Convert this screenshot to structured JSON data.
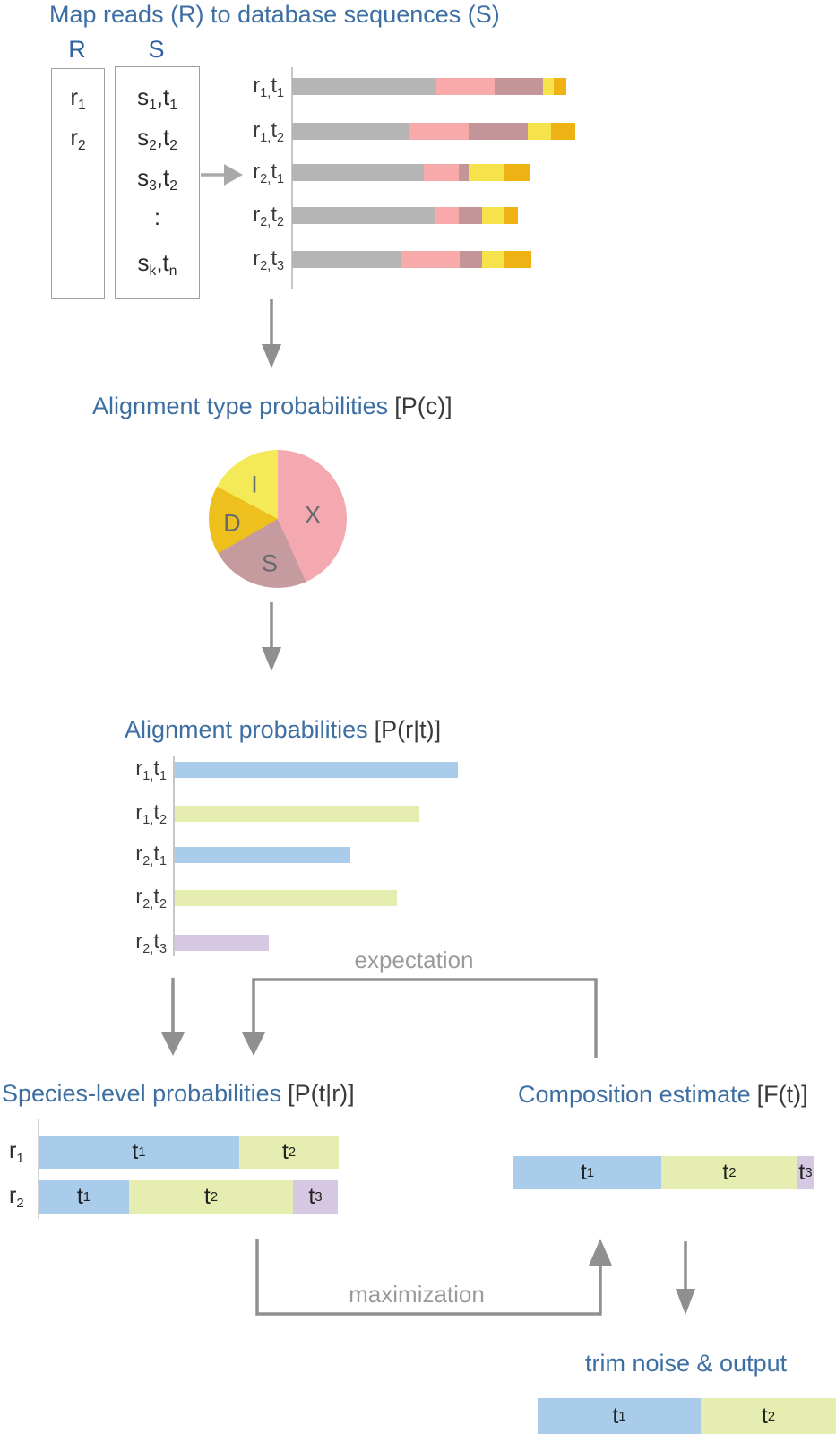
{
  "titles": {
    "map": "Map reads (R) to database sequences (S)",
    "alignment_type": {
      "main": "Alignment type probabilities",
      "math": "[P(c)]"
    },
    "alignment_prob": {
      "main": "Alignment probabilities",
      "math": "[P(r|t)]"
    },
    "species_level": {
      "main": "Species-level probabilities",
      "math": "[P(t|r)]"
    },
    "composition": {
      "main": "Composition estimate",
      "math": "[F(t)]"
    },
    "trim": "trim noise & output"
  },
  "labels": {
    "reads_header": "R",
    "seqs_header": "S",
    "reads": [
      "r_{1}",
      "r_{2}"
    ],
    "seqs": [
      "s_{1},t_{1}",
      "s_{2},t_{2}",
      "s_{3},t_{2}",
      ":",
      "s_{k},t_{n}"
    ],
    "expectation": "expectation",
    "maximization": "maximization"
  },
  "palette": {
    "gray": "#b5b5b5",
    "pink": "#f8a9a9",
    "mauve": "#c39598",
    "light_yellow": "#f6e34c",
    "orange": "#efb214",
    "blue": "#a8cce9",
    "green": "#e6edb0",
    "lavender": "#d6c8e3",
    "pie_pink": "#f3a9af",
    "pie_mauve": "#c69ba0",
    "pie_gold": "#edc01d",
    "pie_yellow": "#f4ea58",
    "title_blue": "#3d6fa2",
    "arrow_gray": "#909090",
    "flow_label_gray": "#9b9b9b"
  },
  "chart_data": [
    {
      "id": "read_alignments",
      "type": "stacked-bar",
      "orientation": "horizontal",
      "title": "Read-to-sequence alignments colored by alignment column type",
      "units": "px",
      "rows": [
        {
          "label": "r_{1,}t_{1}",
          "segments": [
            {
              "color": "gray",
              "value": 161
            },
            {
              "color": "pink",
              "value": 65
            },
            {
              "color": "mauve",
              "value": 54
            },
            {
              "color": "light_yellow",
              "value": 12
            },
            {
              "color": "orange",
              "value": 14
            }
          ]
        },
        {
          "label": "r_{1,}t_{2}",
          "segments": [
            {
              "color": "gray",
              "value": 131
            },
            {
              "color": "pink",
              "value": 66
            },
            {
              "color": "mauve",
              "value": 66
            },
            {
              "color": "light_yellow",
              "value": 26
            },
            {
              "color": "orange",
              "value": 27
            }
          ]
        },
        {
          "label": "r_{2,}t_{1}",
          "segments": [
            {
              "color": "gray",
              "value": 147
            },
            {
              "color": "pink",
              "value": 39
            },
            {
              "color": "mauve",
              "value": 11
            },
            {
              "color": "light_yellow",
              "value": 40
            },
            {
              "color": "orange",
              "value": 29
            }
          ]
        },
        {
          "label": "r_{2,}t_{2}",
          "segments": [
            {
              "color": "gray",
              "value": 160
            },
            {
              "color": "pink",
              "value": 26
            },
            {
              "color": "mauve",
              "value": 26
            },
            {
              "color": "light_yellow",
              "value": 25
            },
            {
              "color": "orange",
              "value": 15
            }
          ]
        },
        {
          "label": "r_{2,}t_{3}",
          "segments": [
            {
              "color": "gray",
              "value": 121
            },
            {
              "color": "pink",
              "value": 66
            },
            {
              "color": "mauve",
              "value": 25
            },
            {
              "color": "light_yellow",
              "value": 25
            },
            {
              "color": "orange",
              "value": 30
            }
          ]
        }
      ]
    },
    {
      "id": "alignment_type_pie",
      "type": "pie",
      "title": "Alignment type probabilities P(c)",
      "start": "top",
      "direction": "clockwise",
      "slices": [
        {
          "label": "X",
          "color": "pie_pink",
          "degrees": 156
        },
        {
          "label": "S",
          "color": "pie_mauve",
          "degrees": 84
        },
        {
          "label": "D",
          "color": "pie_gold",
          "degrees": 58
        },
        {
          "label": "I",
          "color": "pie_yellow",
          "degrees": 62
        }
      ]
    },
    {
      "id": "alignment_probabilities",
      "type": "bar",
      "orientation": "horizontal",
      "title": "Alignment probabilities P(r|t)",
      "units": "px",
      "rows": [
        {
          "label": "r_{1,}t_{1}",
          "color": "blue",
          "value": 316
        },
        {
          "label": "r_{1,}t_{2}",
          "color": "green",
          "value": 273
        },
        {
          "label": "r_{2,}t_{1}",
          "color": "blue",
          "value": 196
        },
        {
          "label": "r_{2,}t_{2}",
          "color": "green",
          "value": 248
        },
        {
          "label": "r_{2,}t_{3}",
          "color": "lavender",
          "value": 105
        }
      ]
    },
    {
      "id": "species_level",
      "type": "stacked-bar",
      "orientation": "horizontal",
      "title": "Species-level probabilities P(t|r)",
      "units": "px",
      "rows": [
        {
          "label": "r_{1}",
          "segments": [
            {
              "label": "t_{1}",
              "color": "blue",
              "value": 224
            },
            {
              "label": "t_{2}",
              "color": "green",
              "value": 111
            }
          ]
        },
        {
          "label": "r_{2}",
          "segments": [
            {
              "label": "t_{1}",
              "color": "blue",
              "value": 101
            },
            {
              "label": "t_{2}",
              "color": "green",
              "value": 183
            },
            {
              "label": "t_{3}",
              "color": "lavender",
              "value": 50
            }
          ]
        }
      ]
    },
    {
      "id": "composition_estimate",
      "type": "stacked-bar",
      "orientation": "horizontal",
      "title": "Composition estimate F(t)",
      "units": "px",
      "segments": [
        {
          "label": "t_{1}",
          "color": "blue",
          "value": 165
        },
        {
          "label": "t_{2}",
          "color": "green",
          "value": 152
        },
        {
          "label": "t_{3}",
          "color": "lavender",
          "value": 18
        }
      ]
    },
    {
      "id": "output",
      "type": "stacked-bar",
      "orientation": "horizontal",
      "title": "trim noise & output",
      "units": "px",
      "segments": [
        {
          "label": "t_{1}",
          "color": "blue",
          "value": 182
        },
        {
          "label": "t_{2}",
          "color": "green",
          "value": 151
        }
      ]
    }
  ]
}
